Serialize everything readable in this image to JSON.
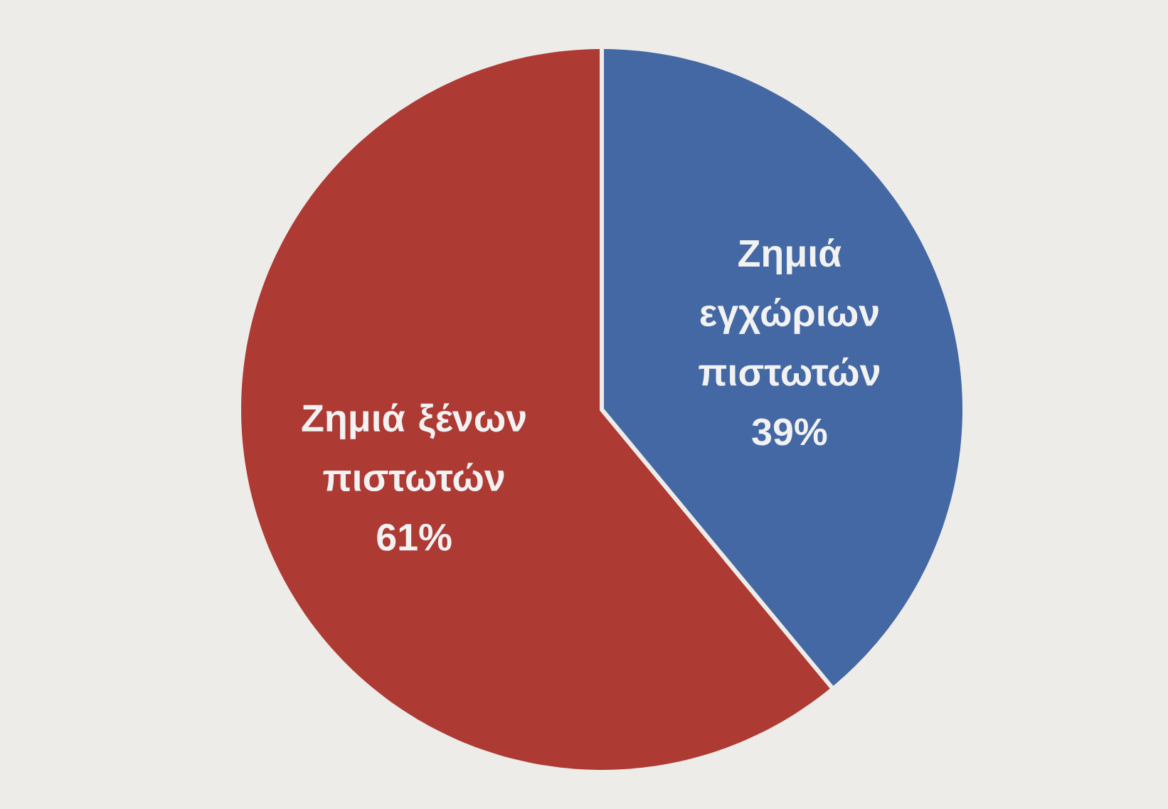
{
  "chart_data": {
    "type": "pie",
    "categories": [
      "Ζημιά εγχώριων πιστωτών",
      "Ζημιά ξένων πιστωτών"
    ],
    "values": [
      39,
      61
    ],
    "colors": [
      "#4468a3",
      "#ae3a34"
    ],
    "data_labels": true,
    "value_labels": [
      "39%",
      "61%"
    ]
  }
}
